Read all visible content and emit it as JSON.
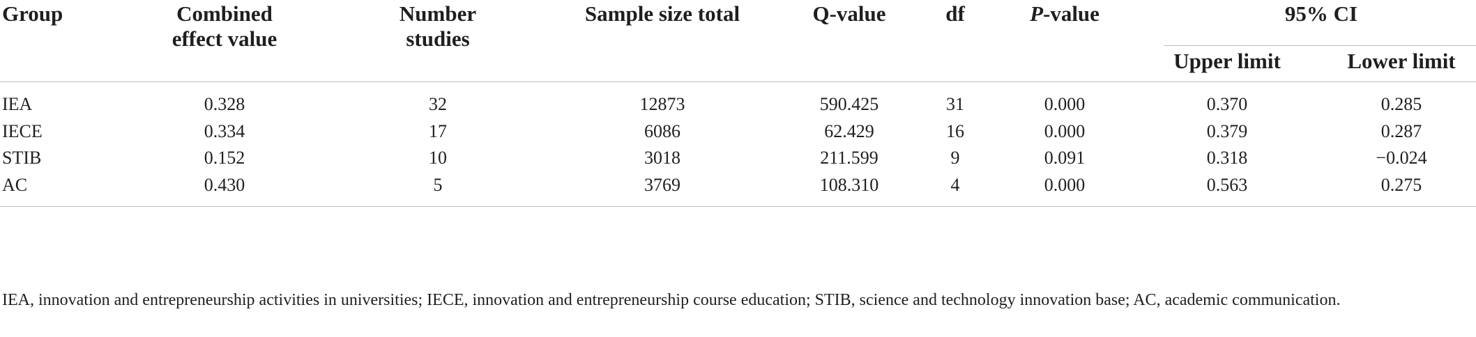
{
  "table": {
    "headers": {
      "group": "Group",
      "combined_1": "Combined",
      "combined_2": "effect value",
      "number_1": "Number",
      "number_2": "studies",
      "sample": "Sample size total",
      "q": "Q-value",
      "df": "df",
      "p_italic": "P",
      "p_rest": "-value",
      "ci": "95% CI",
      "upper": "Upper limit",
      "lower": "Lower limit"
    },
    "rows": [
      {
        "group": "IEA",
        "effect": "0.328",
        "studies": "32",
        "sample": "12873",
        "q": "590.425",
        "df": "31",
        "p": "0.000",
        "upper": "0.370",
        "lower": "0.285"
      },
      {
        "group": "IECE",
        "effect": "0.334",
        "studies": "17",
        "sample": "6086",
        "q": "62.429",
        "df": "16",
        "p": "0.000",
        "upper": "0.379",
        "lower": "0.287"
      },
      {
        "group": "STIB",
        "effect": "0.152",
        "studies": "10",
        "sample": "3018",
        "q": "211.599",
        "df": "9",
        "p": "0.091",
        "upper": "0.318",
        "lower": "−0.024"
      },
      {
        "group": "AC",
        "effect": "0.430",
        "studies": "5",
        "sample": "3769",
        "q": "108.310",
        "df": "4",
        "p": "0.000",
        "upper": "0.563",
        "lower": "0.275"
      }
    ],
    "footnote": "IEA, innovation and entrepreneurship activities in universities; IECE, innovation and entrepreneurship course education; STIB, science and technology innovation base; AC, academic communication."
  }
}
